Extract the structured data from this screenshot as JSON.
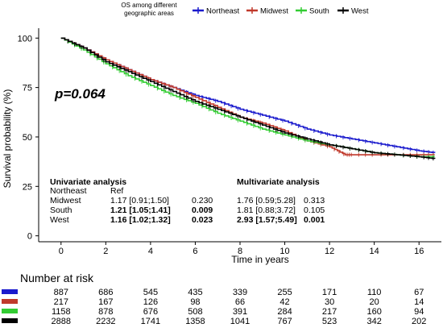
{
  "legend": {
    "title_line1": "OS among different",
    "title_line2": "geographic areas",
    "entries": [
      {
        "name": "Northeast",
        "color": "#1a1acd"
      },
      {
        "name": "Midwest",
        "color": "#c0392b"
      },
      {
        "name": "South",
        "color": "#33cc33"
      },
      {
        "name": "West",
        "color": "#000000"
      }
    ]
  },
  "pvalue": "p=0.064",
  "analysis": {
    "univariate_title": "Univariate analysis",
    "multivariate_title": "Multivariate analysis",
    "rows": [
      {
        "label": "Northeast",
        "uni_ci": "Ref",
        "uni_p": "",
        "multi_ci": "",
        "multi_p": "",
        "bold_uni": false,
        "bold_multi": false
      },
      {
        "label": "Midwest",
        "uni_ci": "1.17 [0.91;1.50]",
        "uni_p": "0.230",
        "multi_ci": "1.76 [0.59;5.28]",
        "multi_p": "0.313",
        "bold_uni": false,
        "bold_multi": false
      },
      {
        "label": "South",
        "uni_ci": "1.21 [1.05;1.41]",
        "uni_p": "0.009",
        "multi_ci": "1.81 [0.88;3.72]",
        "multi_p": "0.105",
        "bold_uni": true,
        "bold_multi": false
      },
      {
        "label": "West",
        "uni_ci": "1.16 [1.02;1.32]",
        "uni_p": "0.023",
        "multi_ci": "2.93 [1.57;5.49]",
        "multi_p": "0.001",
        "bold_uni": true,
        "bold_multi": true
      }
    ]
  },
  "risk_table": {
    "title": "Number at risk",
    "rows": [
      {
        "series": "Northeast",
        "color": "#1a1acd",
        "values": [
          "887",
          "686",
          "545",
          "435",
          "339",
          "255",
          "171",
          "110",
          "67"
        ]
      },
      {
        "series": "Midwest",
        "color": "#c0392b",
        "values": [
          "217",
          "167",
          "126",
          "98",
          "66",
          "42",
          "30",
          "20",
          "14"
        ]
      },
      {
        "series": "South",
        "color": "#33cc33",
        "values": [
          "1158",
          "878",
          "676",
          "508",
          "391",
          "284",
          "217",
          "160",
          "94"
        ]
      },
      {
        "series": "West",
        "color": "#000000",
        "values": [
          "2888",
          "2232",
          "1741",
          "1358",
          "1041",
          "767",
          "523",
          "342",
          "202"
        ]
      }
    ]
  },
  "chart_data": {
    "type": "line",
    "xlabel": "Time in years",
    "ylabel": "Survival probability (%)",
    "xlim": [
      -1,
      17
    ],
    "ylim": [
      -3,
      105
    ],
    "xticks": [
      0,
      2,
      4,
      6,
      8,
      10,
      12,
      14,
      16
    ],
    "yticks": [
      0,
      25,
      50,
      75,
      100
    ],
    "grid": false,
    "legend_position": "top",
    "series": [
      {
        "name": "Northeast",
        "color": "#1a1acd",
        "x": [
          0,
          1,
          2,
          3,
          4,
          5,
          6,
          7,
          8,
          9,
          10,
          11,
          12,
          13,
          14,
          15,
          16,
          16.7
        ],
        "y": [
          100,
          95,
          89,
          84,
          79,
          75,
          71,
          68,
          64,
          61,
          58,
          54,
          51,
          49,
          47,
          45,
          43,
          42
        ]
      },
      {
        "name": "Midwest",
        "color": "#c0392b",
        "x": [
          0,
          1,
          2,
          3,
          4,
          5,
          6,
          7,
          8,
          9,
          10,
          11,
          12,
          12.7,
          13,
          14,
          15,
          16,
          16.7
        ],
        "y": [
          100,
          95,
          89,
          84,
          79,
          75,
          70,
          65,
          60,
          57,
          53,
          48,
          45,
          41,
          41,
          41,
          41,
          41,
          41
        ]
      },
      {
        "name": "South",
        "color": "#33cc33",
        "x": [
          0,
          1,
          2,
          3,
          4,
          5,
          6,
          7,
          8,
          9,
          10,
          11,
          12,
          13,
          14,
          15,
          16,
          16.7
        ],
        "y": [
          100,
          94,
          87,
          81,
          76,
          71,
          67,
          62,
          58,
          54,
          51,
          48,
          46,
          44,
          42,
          41,
          40,
          40
        ]
      },
      {
        "name": "West",
        "color": "#000000",
        "x": [
          0,
          1,
          2,
          3,
          4,
          5,
          6,
          7,
          8,
          9,
          10,
          11,
          12,
          13,
          14,
          15,
          16,
          16.7
        ],
        "y": [
          100,
          95,
          88,
          83,
          78,
          73,
          68,
          64,
          60,
          56,
          52,
          49,
          46,
          44,
          42,
          41,
          40,
          39
        ]
      }
    ]
  }
}
